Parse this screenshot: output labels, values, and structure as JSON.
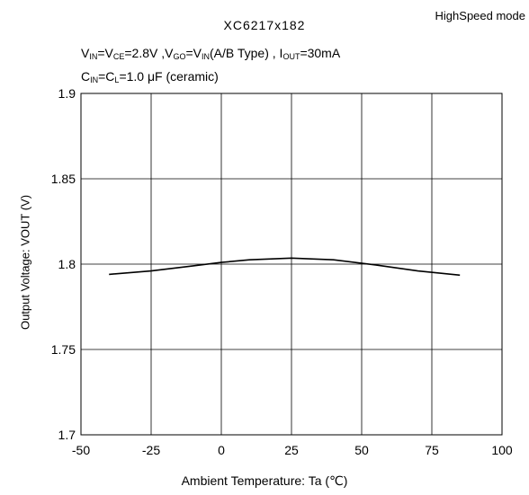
{
  "header": {
    "mode": "HighSpeed mode",
    "title": "XC6217x182"
  },
  "conditions": {
    "line1": {
      "vin": "V",
      "vin_sub": "IN",
      "eq1": "=V",
      "vce_sub": "CE",
      "eq2": "=2.8V ,V",
      "vgo_sub": "GO",
      "eq3": "=V",
      "vin2_sub": "IN",
      "eq4": "(A/B Type) , I",
      "iout_sub": "OUT",
      "eq5": "=30mA"
    },
    "line2": {
      "c": "C",
      "cin_sub": "IN",
      "eq1": "=C",
      "cl_sub": "L",
      "eq2": "=1.0 μF (ceramic)"
    }
  },
  "chart_data": {
    "type": "line",
    "xlabel": "Ambient Temperature: Ta (℃)",
    "ylabel": "Output Voltage: VOUT (V)",
    "xlim": [
      -50,
      100
    ],
    "ylim": [
      1.7,
      1.9
    ],
    "xticks": [
      -50,
      -25,
      0,
      25,
      50,
      75,
      100
    ],
    "yticks": [
      1.7,
      1.75,
      1.8,
      1.85,
      1.9
    ],
    "xtick_labels": [
      "-50",
      "-25",
      "0",
      "25",
      "50",
      "75",
      "100"
    ],
    "ytick_labels": [
      "1.7",
      "1.75",
      "1.8",
      "1.85",
      "1.9"
    ],
    "grid": true,
    "series": [
      {
        "x": [
          -40,
          -25,
          -10,
          0,
          10,
          25,
          40,
          55,
          70,
          85
        ],
        "y": [
          1.794,
          1.796,
          1.799,
          1.801,
          1.8025,
          1.8035,
          1.8025,
          1.7995,
          1.796,
          1.7935
        ]
      }
    ]
  }
}
